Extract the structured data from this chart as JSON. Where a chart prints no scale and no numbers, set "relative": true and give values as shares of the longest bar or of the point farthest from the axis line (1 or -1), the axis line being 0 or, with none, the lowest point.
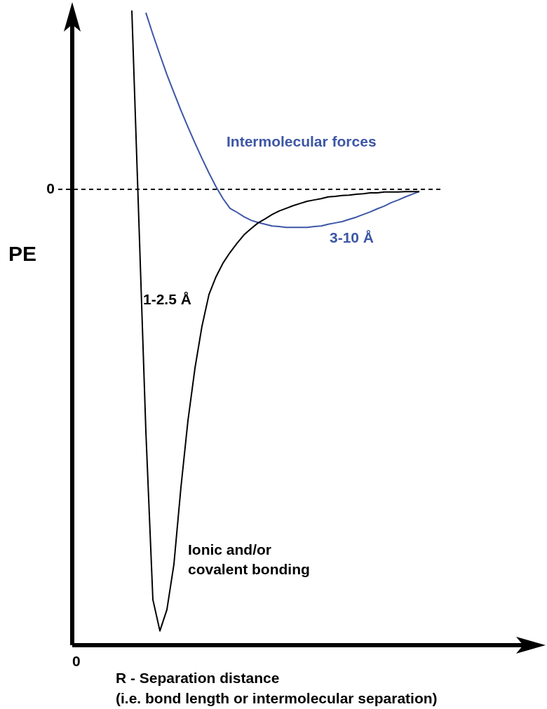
{
  "chart_data": {
    "type": "line",
    "relative": true,
    "xlabel": "R - Separation distance\n(i.e. bond length or intermolecular separation)",
    "ylabel": "PE",
    "categories": [
      null,
      null,
      null,
      null,
      null,
      null,
      null,
      null,
      null,
      null,
      null,
      null,
      null,
      null,
      null,
      null,
      null,
      null,
      null,
      null,
      null,
      null,
      null,
      null,
      null,
      null,
      null,
      null,
      null,
      null,
      null,
      null,
      null,
      null,
      null,
      null,
      null,
      null,
      null,
      null,
      null,
      null
    ],
    "series": [
      {
        "name": "Ionic and/or covalent bonding",
        "color": "#000000",
        "values": [
          0.405,
          -0.071,
          -0.548,
          -0.929,
          -1,
          -0.952,
          -0.849,
          -0.675,
          -0.524,
          -0.405,
          -0.31,
          -0.238,
          -0.198,
          -0.167,
          -0.143,
          -0.122,
          -0.103,
          -0.089,
          -0.076,
          -0.067,
          -0.057,
          -0.049,
          -0.043,
          -0.037,
          -0.032,
          -0.027,
          -0.024,
          -0.021,
          -0.017,
          -0.016,
          -0.014,
          -0.013,
          -0.011,
          -0.01,
          -0.008,
          -0.008,
          -0.006,
          -0.006,
          -0.006,
          -0.005,
          -0.005,
          -0.005
        ]
      },
      {
        "name": "Intermolecular forces",
        "color": "#3d56a6",
        "values": [
          null,
          null,
          0.4,
          0.351,
          0.305,
          0.26,
          0.219,
          0.179,
          0.141,
          0.105,
          0.07,
          0.037,
          0.006,
          -0.021,
          -0.043,
          -0.052,
          -0.062,
          -0.07,
          -0.075,
          -0.079,
          -0.083,
          -0.084,
          -0.086,
          -0.086,
          -0.086,
          -0.086,
          -0.084,
          -0.083,
          -0.079,
          -0.076,
          -0.073,
          -0.068,
          -0.063,
          -0.057,
          -0.051,
          -0.044,
          -0.038,
          -0.03,
          -0.024,
          -0.017,
          -0.011,
          -0.005
        ]
      }
    ],
    "ref_lines": [
      {
        "axis": "y",
        "value": 0,
        "label": "0",
        "line_style": "dashed"
      }
    ],
    "annotations": [
      "0",
      "1-2.5 Å",
      "3-10 Å"
    ],
    "marker": "none",
    "line_style": "solid",
    "legend": false
  }
}
